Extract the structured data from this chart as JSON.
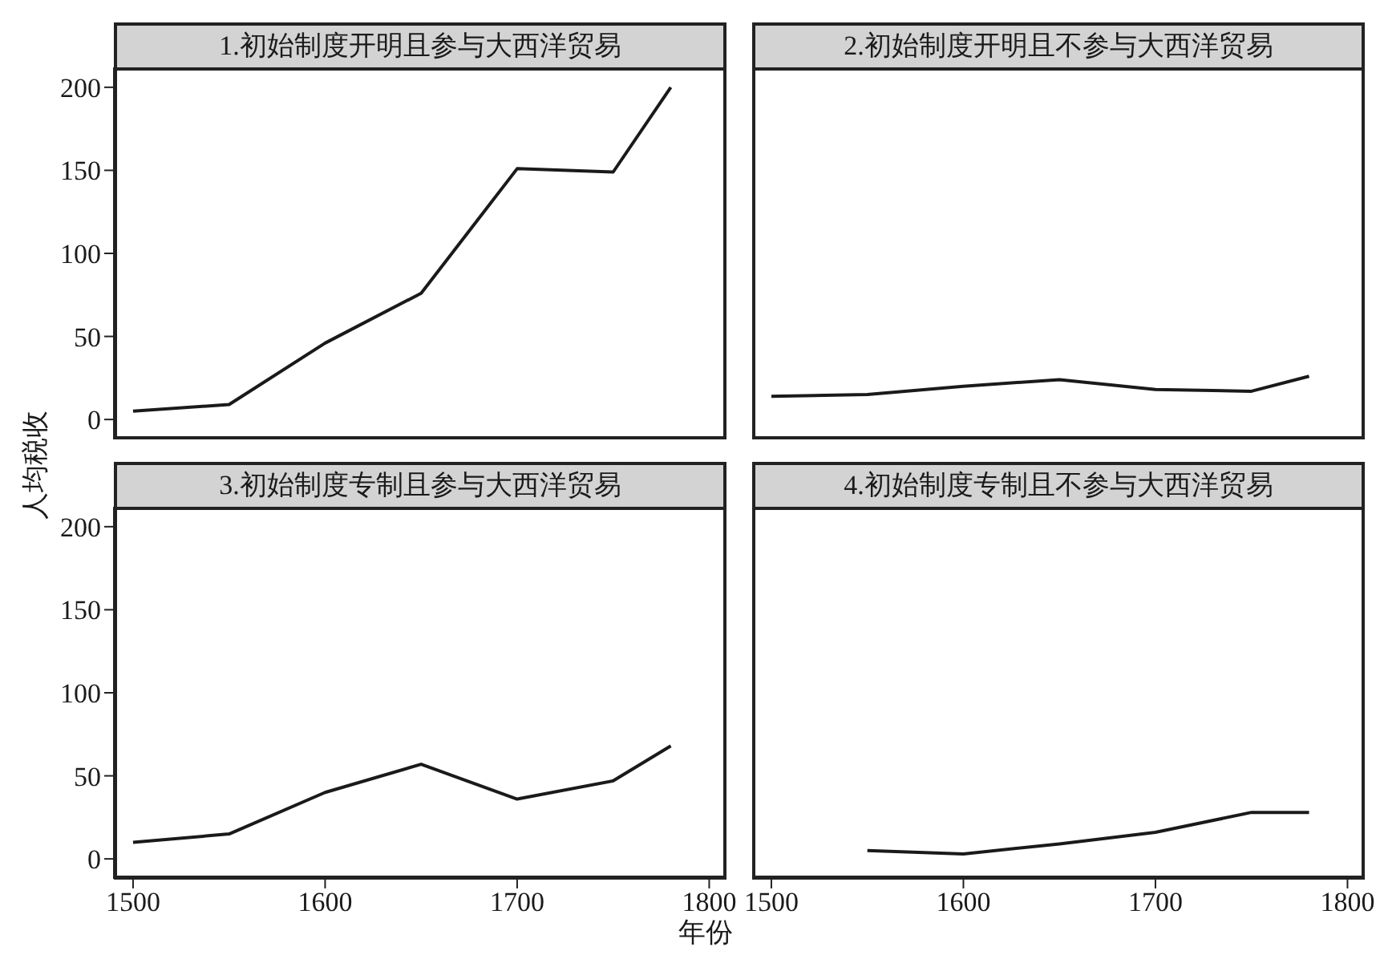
{
  "chart_data": [
    {
      "type": "line",
      "title": "1.初始制度开明且参与大西洋贸易",
      "x": [
        1500,
        1550,
        1600,
        1650,
        1700,
        1750,
        1780
      ],
      "series": [
        {
          "color": "#1a1a1a",
          "values": [
            5,
            9,
            46,
            76,
            151,
            149,
            200
          ]
        }
      ],
      "xlim": [
        1490,
        1809
      ],
      "ylim": [
        -12,
        212
      ],
      "xticks": [
        1500,
        1600,
        1700,
        1800
      ],
      "yticks": [
        0,
        50,
        100,
        150,
        200
      ],
      "tick_labels": "y",
      "marker": "none",
      "line_style": "solid",
      "grid": false,
      "legend": false
    },
    {
      "type": "line",
      "title": "2.初始制度开明且不参与大西洋贸易",
      "x": [
        1500,
        1550,
        1600,
        1650,
        1700,
        1750,
        1780
      ],
      "series": [
        {
          "color": "#1a1a1a",
          "values": [
            14,
            15,
            20,
            24,
            18,
            17,
            26
          ]
        }
      ],
      "xlim": [
        1490,
        1809
      ],
      "ylim": [
        -12,
        212
      ],
      "xticks": [
        1500,
        1600,
        1700,
        1800
      ],
      "yticks": [
        0,
        50,
        100,
        150,
        200
      ],
      "tick_labels": false,
      "marker": "none",
      "line_style": "solid",
      "grid": false,
      "legend": false
    },
    {
      "type": "line",
      "title": "3.初始制度专制且参与大西洋贸易",
      "xlabel": "年份",
      "ylabel": "人均税收",
      "x": [
        1500,
        1550,
        1600,
        1650,
        1700,
        1750,
        1780
      ],
      "series": [
        {
          "color": "#1a1a1a",
          "values": [
            10,
            15,
            40,
            57,
            36,
            47,
            68
          ]
        }
      ],
      "xlim": [
        1490,
        1809
      ],
      "ylim": [
        -12,
        212
      ],
      "xticks": [
        1500,
        1600,
        1700,
        1800
      ],
      "yticks": [
        0,
        50,
        100,
        150,
        200
      ],
      "marker": "none",
      "line_style": "solid",
      "grid": false,
      "legend": false
    },
    {
      "type": "line",
      "title": "4.初始制度专制且不参与大西洋贸易",
      "series": [
        {
          "color": "#1a1a1a",
          "x": [
            1550,
            1600,
            1650,
            1700,
            1750,
            1780
          ],
          "values": [
            5,
            3,
            9,
            16,
            28,
            28
          ]
        }
      ],
      "xlim": [
        1490,
        1809
      ],
      "ylim": [
        -12,
        212
      ],
      "xticks": [
        1500,
        1600,
        1700,
        1800
      ],
      "yticks": [
        0,
        50,
        100,
        150,
        200
      ],
      "tick_labels": "x",
      "marker": "none",
      "line_style": "solid",
      "grid": false,
      "legend": false
    }
  ]
}
